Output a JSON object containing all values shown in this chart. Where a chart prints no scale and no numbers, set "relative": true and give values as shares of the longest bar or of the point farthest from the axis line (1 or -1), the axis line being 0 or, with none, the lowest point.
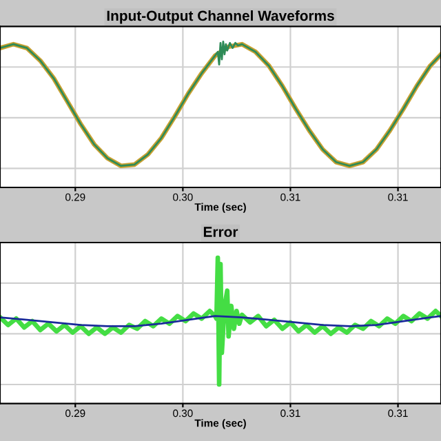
{
  "chart_data": [
    {
      "type": "line",
      "title": "Input-Output Channel Waveforms",
      "xlabel": "Time (sec)",
      "relative": true,
      "grid": true,
      "tick_labels": "x",
      "xlim": [
        0.2844,
        0.3172
      ],
      "xticks": [
        {
          "value": 0.29,
          "label": "0.29"
        },
        {
          "value": 0.298,
          "label": "0.30"
        },
        {
          "value": 0.306,
          "label": "0.31"
        },
        {
          "value": 0.314,
          "label": "0.31"
        }
      ],
      "series": [
        {
          "color": "#c8a030",
          "x": [
            0.2844,
            0.2854,
            0.2864,
            0.2874,
            0.2884,
            0.2894,
            0.2904,
            0.2914,
            0.2924,
            0.2934,
            0.2944,
            0.2954,
            0.2964,
            0.2974,
            0.2984,
            0.2994,
            0.3004,
            0.3014,
            0.3024,
            0.3034,
            0.3044,
            0.3054,
            0.3064,
            0.3074,
            0.3084,
            0.3094,
            0.3104,
            0.3114,
            0.3124,
            0.3134,
            0.3144,
            0.3154,
            0.3164,
            0.3172
          ],
          "values": [
            0.95,
            0.98,
            0.95,
            0.85,
            0.71,
            0.53,
            0.35,
            0.19,
            0.08,
            0.02,
            0.03,
            0.11,
            0.24,
            0.41,
            0.59,
            0.75,
            0.89,
            0.96,
            0.98,
            0.92,
            0.81,
            0.65,
            0.47,
            0.3,
            0.15,
            0.05,
            0.02,
            0.05,
            0.15,
            0.3,
            0.47,
            0.65,
            0.81,
            0.9
          ]
        },
        {
          "color": "#2e8b57",
          "x": [
            0.2844,
            0.2854,
            0.2864,
            0.2874,
            0.2884,
            0.2894,
            0.2904,
            0.2914,
            0.2924,
            0.2934,
            0.2944,
            0.2954,
            0.2964,
            0.2974,
            0.2984,
            0.2994,
            0.3004,
            0.3006,
            0.3007,
            0.3008,
            0.3009,
            0.301,
            0.3011,
            0.3012,
            0.3013,
            0.3015,
            0.3017,
            0.3019,
            0.3021,
            0.3024,
            0.3034,
            0.3044,
            0.3054,
            0.3064,
            0.3074,
            0.3084,
            0.3094,
            0.3104,
            0.3114,
            0.3124,
            0.3134,
            0.3144,
            0.3154,
            0.3164,
            0.3172
          ],
          "values": [
            0.95,
            0.98,
            0.95,
            0.85,
            0.71,
            0.53,
            0.35,
            0.19,
            0.08,
            0.02,
            0.03,
            0.11,
            0.24,
            0.41,
            0.59,
            0.75,
            0.89,
            0.92,
            0.82,
            0.99,
            0.86,
            1.0,
            0.9,
            0.98,
            0.93,
            0.99,
            0.95,
            0.99,
            0.97,
            0.98,
            0.92,
            0.81,
            0.65,
            0.47,
            0.3,
            0.15,
            0.05,
            0.02,
            0.05,
            0.15,
            0.3,
            0.47,
            0.65,
            0.81,
            0.9
          ]
        }
      ]
    },
    {
      "type": "line",
      "title": "Error",
      "xlabel": "Time (sec)",
      "relative": true,
      "grid": true,
      "tick_labels": "x",
      "xlim": [
        0.2844,
        0.3172
      ],
      "xticks": [
        {
          "value": 0.29,
          "label": "0.29"
        },
        {
          "value": 0.298,
          "label": "0.30"
        },
        {
          "value": 0.306,
          "label": "0.31"
        },
        {
          "value": 0.314,
          "label": "0.31"
        }
      ],
      "series": [
        {
          "color": "#44dd44",
          "x": [
            0.2844,
            0.285,
            0.2856,
            0.2862,
            0.2868,
            0.2874,
            0.288,
            0.2886,
            0.2892,
            0.2898,
            0.2904,
            0.291,
            0.2916,
            0.2922,
            0.2928,
            0.2934,
            0.294,
            0.2946,
            0.2952,
            0.2958,
            0.2964,
            0.297,
            0.2976,
            0.2982,
            0.2988,
            0.2994,
            0.3,
            0.3004,
            0.3005,
            0.3006,
            0.3007,
            0.3008,
            0.3009,
            0.3011,
            0.3013,
            0.3014,
            0.3016,
            0.3018,
            0.302,
            0.3022,
            0.3024,
            0.303,
            0.3036,
            0.3042,
            0.3048,
            0.3054,
            0.306,
            0.3066,
            0.3072,
            0.3078,
            0.3084,
            0.309,
            0.3096,
            0.3102,
            0.3108,
            0.3114,
            0.312,
            0.3126,
            0.3132,
            0.3138,
            0.3144,
            0.315,
            0.3156,
            0.3162,
            0.3168,
            0.3172
          ],
          "values": [
            0.53,
            0.47,
            0.52,
            0.45,
            0.5,
            0.43,
            0.48,
            0.42,
            0.47,
            0.41,
            0.46,
            0.4,
            0.45,
            0.4,
            0.45,
            0.41,
            0.47,
            0.44,
            0.5,
            0.46,
            0.52,
            0.48,
            0.54,
            0.5,
            0.56,
            0.52,
            0.58,
            0.54,
            0.52,
            1.0,
            0.0,
            0.95,
            0.25,
            0.62,
            0.74,
            0.38,
            0.62,
            0.44,
            0.58,
            0.48,
            0.55,
            0.49,
            0.54,
            0.46,
            0.51,
            0.44,
            0.49,
            0.42,
            0.47,
            0.41,
            0.46,
            0.4,
            0.45,
            0.41,
            0.47,
            0.44,
            0.5,
            0.46,
            0.52,
            0.48,
            0.54,
            0.5,
            0.56,
            0.52,
            0.58,
            0.54
          ]
        },
        {
          "color": "#1a2a9a",
          "x": [
            0.2844,
            0.2864,
            0.2884,
            0.2904,
            0.2924,
            0.2944,
            0.2964,
            0.2984,
            0.3004,
            0.3024,
            0.3044,
            0.3064,
            0.3084,
            0.3104,
            0.3124,
            0.3144,
            0.3164,
            0.3172
          ],
          "values": [
            0.53,
            0.51,
            0.49,
            0.47,
            0.46,
            0.46,
            0.48,
            0.51,
            0.54,
            0.53,
            0.51,
            0.49,
            0.47,
            0.46,
            0.47,
            0.5,
            0.53,
            0.54
          ]
        }
      ]
    }
  ]
}
